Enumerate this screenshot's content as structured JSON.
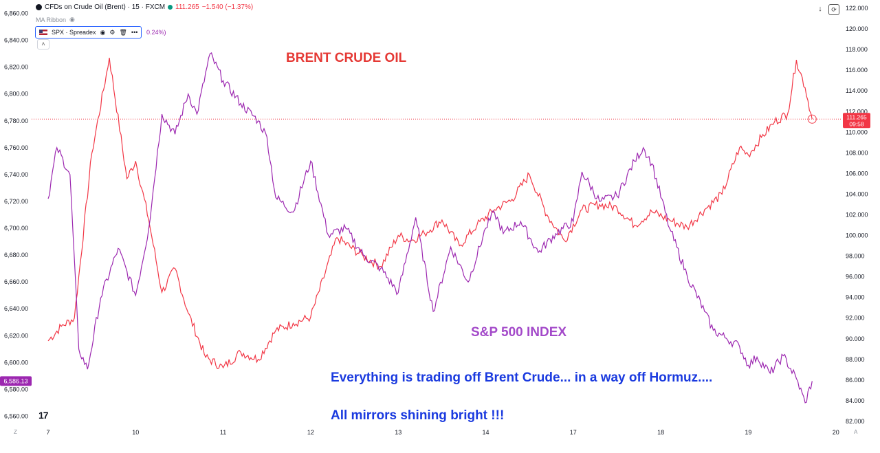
{
  "header": {
    "symbol_title": "CFDs on Crude Oil (Brent) · 15 · FXCM",
    "last_price": "111.265",
    "change": "−1.540 (−1.37%)"
  },
  "indicator": {
    "name": "MA Ribbon"
  },
  "overlay": {
    "name": "SPX · Spreadex",
    "change_pct": "0.24%)"
  },
  "toolbar": {
    "download_glyph": "↓",
    "reset_glyph": "⟳"
  },
  "annotations": {
    "brent_label": "BRENT CRUDE OIL",
    "spx_label": "S&P 500 INDEX",
    "note_line1": "Everything is trading off Brent Crude... in a way off Hormuz....",
    "note_line2": "All mirrors shining bright !!!"
  },
  "corners": {
    "left": "Z",
    "right": "A"
  },
  "logo_text": "17",
  "colors": {
    "brent": "#f23645",
    "spx": "#9c27b0",
    "note": "#1a3adf",
    "brent_label": "#e53935",
    "spx_label": "#a349c9"
  },
  "chart_data": {
    "type": "line",
    "x_labels": [
      "7",
      "10",
      "11",
      "12",
      "13",
      "14",
      "17",
      "18",
      "19",
      "20"
    ],
    "left_axis": {
      "range": [
        6550,
        6870
      ],
      "ticks": [
        "6,560.00",
        "6,580.00",
        "6,600.00",
        "6,620.00",
        "6,640.00",
        "6,660.00",
        "6,680.00",
        "6,700.00",
        "6,720.00",
        "6,740.00",
        "6,760.00",
        "6,780.00",
        "6,800.00",
        "6,820.00",
        "6,840.00",
        "6,860.00"
      ],
      "tick_values": [
        6560,
        6580,
        6600,
        6620,
        6640,
        6660,
        6680,
        6700,
        6720,
        6740,
        6760,
        6780,
        6800,
        6820,
        6840,
        6860
      ],
      "last_label": "6,586.13",
      "last_value": 6586.13
    },
    "right_axis": {
      "range": [
        81.2,
        122.8
      ],
      "ticks": [
        "82.000",
        "84.000",
        "86.000",
        "88.000",
        "90.000",
        "92.000",
        "94.000",
        "96.000",
        "98.000",
        "100.000",
        "102.000",
        "104.000",
        "106.000",
        "108.000",
        "110.000",
        "112.000",
        "114.000",
        "116.000",
        "118.000",
        "120.000",
        "122.000"
      ],
      "tick_values": [
        82,
        84,
        86,
        88,
        90,
        92,
        94,
        96,
        98,
        100,
        102,
        104,
        106,
        108,
        110,
        112,
        114,
        116,
        118,
        120,
        122
      ],
      "last_label": "111.265",
      "last_value": 111.265,
      "countdown": "09:58"
    },
    "series": [
      {
        "name": "BRENT CRUDE OIL",
        "axis": "right",
        "x": [
          0,
          0.15,
          0.3,
          0.5,
          0.7,
          0.9,
          1.0,
          1.15,
          1.3,
          1.45,
          1.6,
          1.8,
          2.0,
          2.2,
          2.4,
          2.6,
          2.8,
          3.0,
          3.3,
          3.6,
          3.8,
          4.0,
          4.15,
          4.3,
          4.5,
          4.7,
          4.9,
          5.1,
          5.3,
          5.5,
          5.7,
          5.9,
          6.1,
          6.3,
          6.5,
          6.7,
          6.9,
          7.1,
          7.3,
          7.5,
          7.7,
          7.9,
          8.0,
          8.15,
          8.3,
          8.45,
          8.55,
          8.65,
          8.73
        ],
        "y": [
          89.8,
          91.2,
          92.0,
          108.0,
          117.2,
          105.5,
          107.2,
          101.5,
          94.5,
          96.8,
          92.5,
          88.2,
          87.2,
          88.7,
          88.0,
          90.8,
          91.5,
          92.1,
          99.8,
          98.0,
          97.0,
          100.0,
          99.5,
          100.2,
          101.5,
          99.0,
          101.0,
          102.5,
          103.5,
          105.9,
          102.0,
          99.5,
          102.5,
          103.0,
          102.7,
          101.0,
          102.3,
          101.5,
          100.8,
          102.5,
          104.0,
          108.5,
          107.8,
          109.5,
          111.0,
          111.8,
          117.0,
          114.3,
          111.265
        ]
      },
      {
        "name": "S&P 500 INDEX",
        "axis": "left",
        "x": [
          0,
          0.1,
          0.25,
          0.35,
          0.45,
          0.6,
          0.8,
          1.0,
          1.15,
          1.3,
          1.45,
          1.6,
          1.7,
          1.85,
          2.0,
          2.2,
          2.4,
          2.5,
          2.6,
          2.8,
          3.0,
          3.2,
          3.4,
          3.6,
          3.8,
          4.0,
          4.2,
          4.4,
          4.6,
          4.8,
          5.0,
          5.1,
          5.2,
          5.4,
          5.6,
          5.8,
          6.0,
          6.1,
          6.3,
          6.5,
          6.7,
          6.8,
          6.9,
          7.1,
          7.3,
          7.5,
          7.6,
          7.75,
          7.9,
          8.0,
          8.1,
          8.25,
          8.4,
          8.55,
          8.65,
          8.73
        ],
        "y": [
          6722,
          6760,
          6740,
          6610,
          6595,
          6648,
          6685,
          6650,
          6700,
          6785,
          6770,
          6800,
          6785,
          6830,
          6810,
          6793,
          6780,
          6768,
          6723,
          6712,
          6750,
          6695,
          6700,
          6680,
          6670,
          6652,
          6708,
          6638,
          6686,
          6660,
          6700,
          6712,
          6696,
          6705,
          6682,
          6696,
          6705,
          6742,
          6720,
          6724,
          6750,
          6760,
          6748,
          6700,
          6665,
          6638,
          6624,
          6618,
          6612,
          6598,
          6604,
          6592,
          6605,
          6588,
          6570,
          6586.13
        ]
      }
    ],
    "reference_line": {
      "axis": "right",
      "value": 111.265,
      "style": "dotted"
    },
    "grid": false,
    "legend": "top-left"
  }
}
